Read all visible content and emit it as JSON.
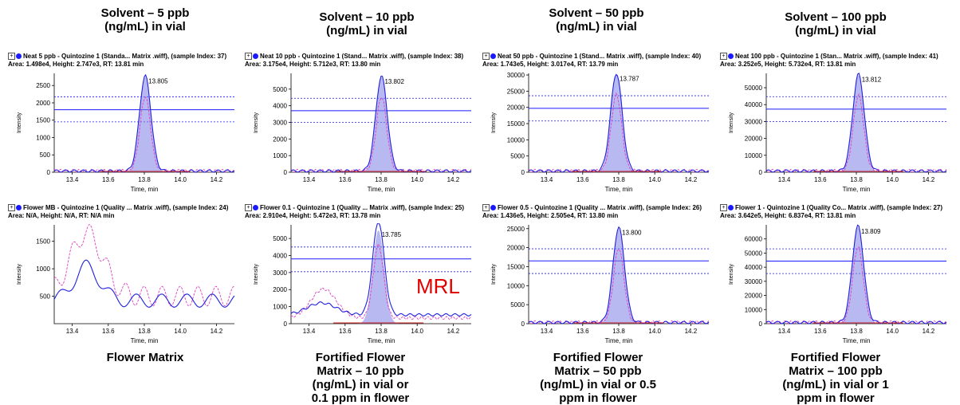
{
  "column_titles": [
    {
      "line1": "Solvent – 5 ppb",
      "line2": "(ng/mL) in vial"
    },
    {
      "line1": "Solvent – 10 ppb",
      "line2": "(ng/mL) in vial"
    },
    {
      "line1": "Solvent – 50 ppb",
      "line2": "(ng/mL) in vial"
    },
    {
      "line1": "Solvent – 100 ppb",
      "line2": "(ng/mL) in vial"
    }
  ],
  "bottom_labels": [
    {
      "lines": [
        "Flower Matrix"
      ]
    },
    {
      "lines": [
        "Fortified Flower",
        "Matrix – 10 ppb",
        "(ng/mL) in vial or",
        "0.1 ppm in flower"
      ]
    },
    {
      "lines": [
        "Fortified Flower",
        "Matrix – 50 ppb",
        "(ng/mL) in vial or 0.5",
        "ppm in flower"
      ]
    },
    {
      "lines": [
        "Fortified Flower",
        "Matrix – 100 ppb",
        "(ng/mL) in vial or 1",
        "ppm in flower"
      ]
    }
  ],
  "panels": [
    {
      "header1": "Neat 5 ppb - Quintozine 1 (Standa... Matrix .wiff), (sample Index: 37)",
      "header2": "Area: 1.498e4, Height: 2.747e3, RT: 13.81 min"
    },
    {
      "header1": "Neat 10 ppb - Quintozine 1 (Stand... Matrix .wiff), (sample Index: 38)",
      "header2": "Area: 3.175e4, Height: 5.712e3, RT: 13.80 min"
    },
    {
      "header1": "Neat 50 ppb - Quintozine 1 (Stand... Matrix .wiff), (sample Index: 40)",
      "header2": "Area: 1.743e5, Height: 3.017e4, RT: 13.79 min"
    },
    {
      "header1": "Neat 100 ppb - Quintozine 1 (Stan... Matrix .wiff), (sample Index: 41)",
      "header2": "Area: 3.252e5, Height: 5.732e4, RT: 13.81 min"
    },
    {
      "header1": "Flower MB - Quintozine 1 (Quality ... Matrix .wiff), (sample Index: 24)",
      "header2": "Area: N/A, Height: N/A, RT: N/A min"
    },
    {
      "header1": "Flower 0.1 - Quintozine 1 (Quality ... Matrix .wiff), (sample Index: 25)",
      "header2": "Area: 2.910e4, Height: 5.472e3, RT: 13.78 min"
    },
    {
      "header1": "Flower 0.5 - Quintozine 1 (Quality ... Matrix .wiff), (sample Index: 26)",
      "header2": "Area: 1.436e5, Height: 2.505e4, RT: 13.80 min"
    },
    {
      "header1": "Flower 1 - Quintozine 1 (Quality Co... Matrix .wiff), (sample Index: 27)",
      "header2": "Area: 3.642e5, Height: 6.837e4, RT: 13.81 min"
    }
  ],
  "mrl_label": "MRL",
  "colors": {
    "blue_trace": "#2020e0",
    "pink_trace": "#e040c0",
    "fill": "#8080e8",
    "baseline": "#d02020",
    "marker": "#1a1aff",
    "mrl": "#e00000"
  },
  "chart_data": [
    {
      "type": "line",
      "xlabel": "Time, min",
      "ylabel": "Intensity",
      "xlim": [
        13.3,
        14.3
      ],
      "xticks": [
        13.4,
        13.6,
        13.8,
        14.0,
        14.2
      ],
      "yticks": [
        0,
        500,
        1000,
        1500,
        2000,
        2500
      ],
      "ylim": [
        0,
        2850
      ],
      "peak": {
        "rt": 13.805,
        "height": 2747,
        "label": "13.805"
      },
      "ref_lines": [
        1450,
        1800,
        2170
      ]
    },
    {
      "type": "line",
      "xlabel": "Time, min",
      "ylabel": "Intensity",
      "xlim": [
        13.3,
        14.3
      ],
      "xticks": [
        13.4,
        13.6,
        13.8,
        14.0,
        14.2
      ],
      "yticks": [
        0,
        1000,
        2000,
        3000,
        4000,
        5000
      ],
      "ylim": [
        0,
        5950
      ],
      "peak": {
        "rt": 13.802,
        "height": 5712,
        "label": "13.802"
      },
      "ref_lines": [
        3000,
        3700,
        4450
      ]
    },
    {
      "type": "line",
      "xlabel": "Time, min",
      "ylabel": "Intensity",
      "xlim": [
        13.3,
        14.3
      ],
      "xticks": [
        13.4,
        13.6,
        13.8,
        14.0,
        14.2
      ],
      "yticks": [
        0,
        5000,
        10000,
        15000,
        20000,
        25000,
        30000
      ],
      "ylim": [
        0,
        30500
      ],
      "peak": {
        "rt": 13.787,
        "height": 30170,
        "label": "13.787"
      },
      "ref_lines": [
        15800,
        19700,
        23600
      ]
    },
    {
      "type": "line",
      "xlabel": "Time, min",
      "ylabel": "Intensity",
      "xlim": [
        13.3,
        14.3
      ],
      "xticks": [
        13.4,
        13.6,
        13.8,
        14.0,
        14.2
      ],
      "yticks": [
        0,
        10000,
        20000,
        30000,
        40000,
        50000
      ],
      "ylim": [
        0,
        58500
      ],
      "peak": {
        "rt": 13.812,
        "height": 57320,
        "label": "13.812"
      },
      "ref_lines": [
        30000,
        37300,
        44700
      ]
    },
    {
      "type": "line",
      "xlabel": "Time, min",
      "ylabel": "Intensity",
      "xlim": [
        13.3,
        14.3
      ],
      "xticks": [
        13.4,
        13.6,
        13.8,
        14.0,
        14.2
      ],
      "yticks": [
        500,
        1000,
        1500
      ],
      "ylim": [
        0,
        1800
      ],
      "peak": null,
      "ref_lines": []
    },
    {
      "type": "line",
      "xlabel": "Time, min",
      "ylabel": "Intensity",
      "xlim": [
        13.3,
        14.3
      ],
      "xticks": [
        13.4,
        13.6,
        13.8,
        14.0,
        14.2
      ],
      "yticks": [
        0,
        1000,
        2000,
        3000,
        4000,
        5000
      ],
      "ylim": [
        0,
        5800
      ],
      "peak": {
        "rt": 13.785,
        "height": 5472,
        "label": "13.785"
      },
      "ref_lines": [
        3050,
        3800,
        4500
      ]
    },
    {
      "type": "line",
      "xlabel": "Time, min",
      "ylabel": "Intensity",
      "xlim": [
        13.3,
        14.3
      ],
      "xticks": [
        13.4,
        13.6,
        13.8,
        14.0,
        14.2
      ],
      "yticks": [
        0,
        5000,
        10000,
        15000,
        20000,
        25000
      ],
      "ylim": [
        0,
        26000
      ],
      "peak": {
        "rt": 13.8,
        "height": 25050,
        "label": "13.800"
      },
      "ref_lines": [
        13200,
        16500,
        19700
      ]
    },
    {
      "type": "line",
      "xlabel": "Time, min",
      "ylabel": "Intensity",
      "xlim": [
        13.3,
        14.3
      ],
      "xticks": [
        13.4,
        13.6,
        13.8,
        14.0,
        14.2
      ],
      "yticks": [
        0,
        10000,
        20000,
        30000,
        40000,
        50000,
        60000
      ],
      "ylim": [
        0,
        70000
      ],
      "peak": {
        "rt": 13.809,
        "height": 68370,
        "label": "13.809"
      },
      "ref_lines": [
        35500,
        44300,
        53000
      ]
    }
  ]
}
